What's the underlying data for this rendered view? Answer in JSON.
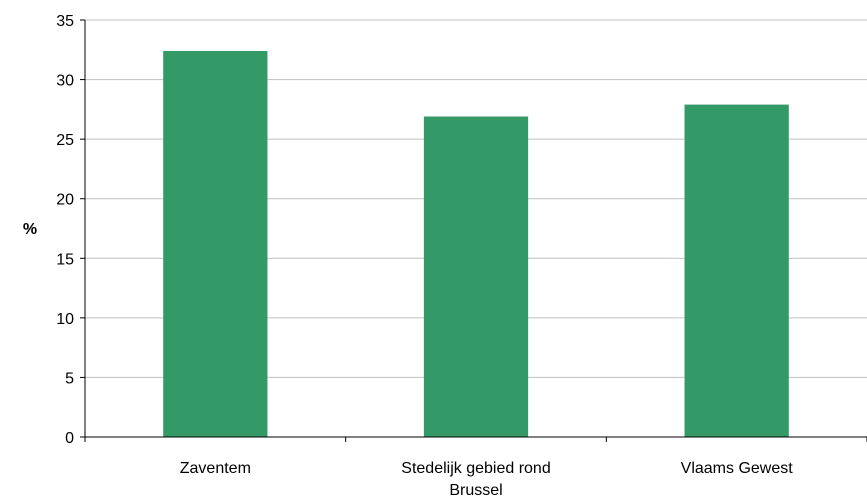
{
  "chart_data": {
    "type": "bar",
    "categories": [
      "Zaventem",
      "Stedelijk gebied rond Brussel",
      "Vlaams Gewest"
    ],
    "category_lines": [
      [
        "Zaventem"
      ],
      [
        "Stedelijk gebied rond",
        "Brussel"
      ],
      [
        "Vlaams Gewest"
      ]
    ],
    "values": [
      32.4,
      26.9,
      27.9
    ],
    "ylabel": "%",
    "ylim": [
      0,
      35
    ],
    "yticks": [
      0,
      5,
      10,
      15,
      20,
      25,
      30,
      35
    ],
    "grid": true,
    "legend": "none",
    "colors": {
      "bar": "#339966",
      "grid": "#c0c0c0",
      "axis": "#000000"
    }
  }
}
